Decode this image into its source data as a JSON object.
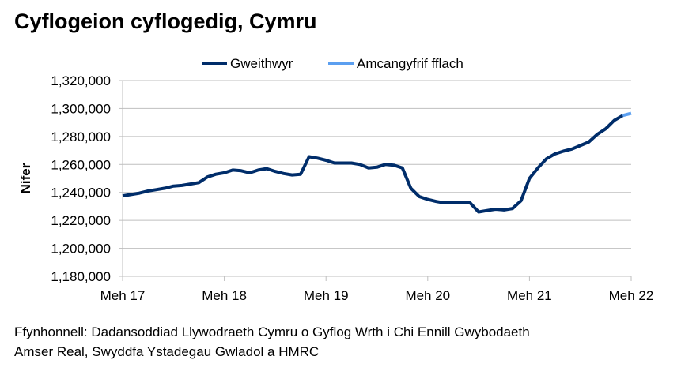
{
  "chart_data": {
    "type": "line",
    "title": "Cyflogeion cyflogedig, Cymru",
    "ylabel": "Nifer",
    "xlabel": "",
    "ylim": [
      1180000,
      1320000
    ],
    "yticks": [
      1180000,
      1200000,
      1220000,
      1240000,
      1260000,
      1280000,
      1300000,
      1320000
    ],
    "ytick_labels": [
      "1,180,000",
      "1,200,000",
      "1,220,000",
      "1,240,000",
      "1,260,000",
      "1,280,000",
      "1,300,000",
      "1,320,000"
    ],
    "x_start": "2017-06",
    "x_end": "2022-06",
    "xtick_labels": [
      "Meh 17",
      "Meh 18",
      "Meh 19",
      "Meh 20",
      "Meh 21",
      "Meh 22"
    ],
    "grid": "horizontal",
    "legend": "top",
    "series": [
      {
        "name": "Gweithwyr",
        "color": "#002D6A",
        "start": "2017-06",
        "values": [
          1237500,
          1238500,
          1239500,
          1241000,
          1242000,
          1243000,
          1244500,
          1245000,
          1246000,
          1247000,
          1251000,
          1253000,
          1254000,
          1256000,
          1255500,
          1254000,
          1256000,
          1257000,
          1255000,
          1253500,
          1252500,
          1253000,
          1265500,
          1264500,
          1263000,
          1261000,
          1261000,
          1261000,
          1260000,
          1257500,
          1258000,
          1260000,
          1259500,
          1257500,
          1243000,
          1237000,
          1235000,
          1233500,
          1232500,
          1232500,
          1233000,
          1232500,
          1226000,
          1227000,
          1228000,
          1227500,
          1228500,
          1234000,
          1250000,
          1257500,
          1264000,
          1267500,
          1269500,
          1271000,
          1273500,
          1276000,
          1281500,
          1285500,
          1291500,
          1295000
        ]
      },
      {
        "name": "Amcangyfrif fflach",
        "color": "#5B9FF0",
        "start": "2022-05",
        "values": [
          1295000,
          1296500
        ]
      }
    ]
  },
  "source": {
    "line1": "Ffynhonnell: Dadansoddiad Llywodraeth Cymru o Gyflog Wrth i Chi Ennill Gwybodaeth",
    "line2": "Amser Real, Swyddfa Ystadegau Gwladol a HMRC"
  }
}
